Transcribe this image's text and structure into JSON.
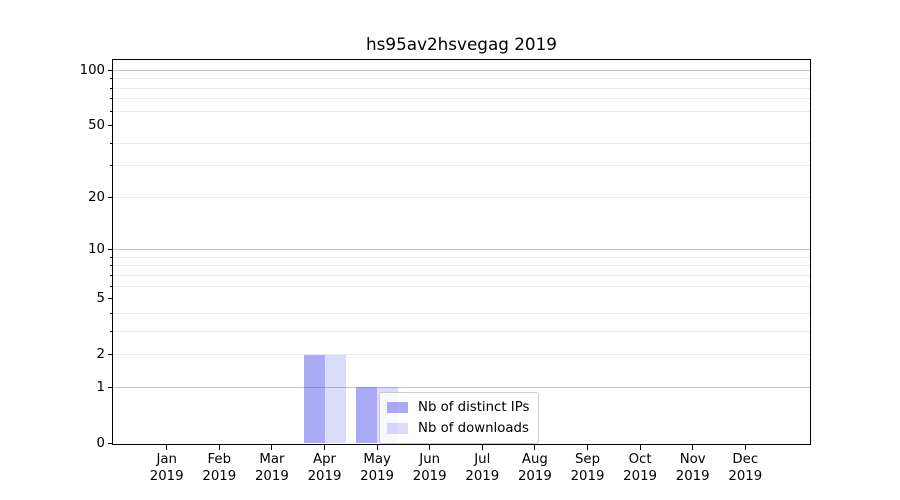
{
  "title": "hs95av2hsvegag 2019",
  "chart_data": {
    "type": "bar",
    "title": "hs95av2hsvegag 2019",
    "categories": [
      "Jan",
      "Feb",
      "Mar",
      "Apr",
      "May",
      "Jun",
      "Jul",
      "Aug",
      "Sep",
      "Oct",
      "Nov",
      "Dec"
    ],
    "year": "2019",
    "series": [
      {
        "name": "Nb of distinct IPs",
        "color": "#5555f080",
        "values": [
          0,
          0,
          0,
          2,
          1,
          0,
          0,
          0,
          0,
          0,
          0,
          0
        ]
      },
      {
        "name": "Nb of downloads",
        "color": "#5555f036",
        "values": [
          0,
          0,
          0,
          2,
          1,
          0,
          0,
          0,
          0,
          0,
          0,
          0
        ]
      }
    ],
    "yscale": "log1p",
    "ylim": [
      0,
      113
    ],
    "yticks": [
      0,
      1,
      2,
      5,
      10,
      20,
      50,
      100
    ],
    "ygrid_major": [
      1,
      10,
      100
    ],
    "ygrid_minor": [
      2,
      3,
      4,
      6,
      7,
      8,
      9,
      20,
      30,
      40,
      60,
      70,
      80,
      90
    ],
    "grid": "horizontal-only",
    "legend_position": "lower-center-inside",
    "colors": {
      "bar_distinct_ips_rendered": "#aaaaf7",
      "bar_downloads_rendered": "#dbdbfc",
      "grid_major": "#c2c2c2",
      "grid_minor": "#eaeaea",
      "spine": "#000000",
      "background": "#ffffff",
      "text": "#000000"
    }
  }
}
